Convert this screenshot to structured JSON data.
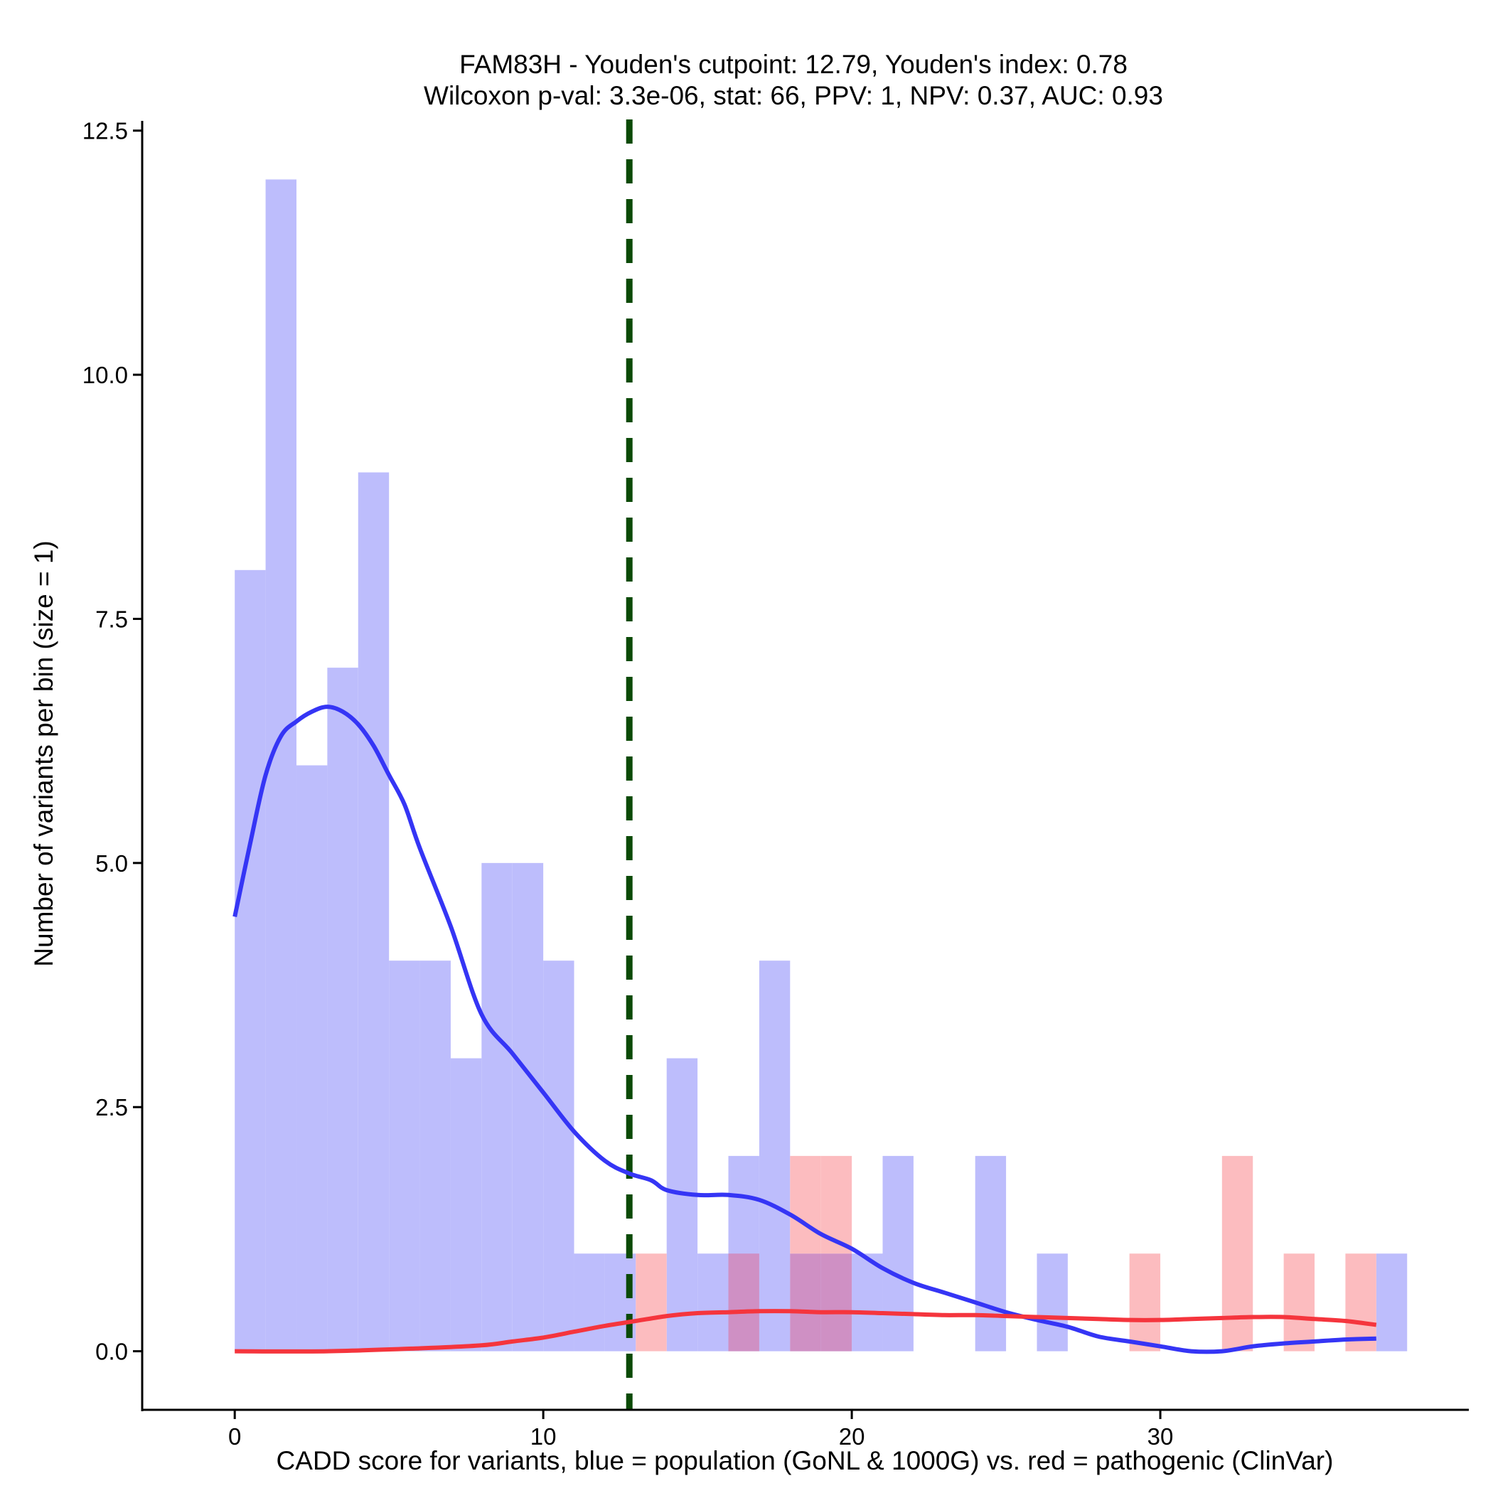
{
  "chart_data": {
    "type": "histogram",
    "title_lines": [
      "FAM83H - Youden's cutpoint: 12.79, Youden's index: 0.78",
      "Wilcoxon p-val: 3.3e-06, stat: 66, PPV: 1, NPV: 0.37, AUC: 0.93"
    ],
    "xlabel": "CADD score for variants, blue = population (GoNL & 1000G) vs. red = pathogenic (ClinVar)",
    "ylabel": "Number of variants per bin (size = 1)",
    "xlim": [
      -3,
      40
    ],
    "ylim": [
      -0.6,
      12.6
    ],
    "x_ticks": [
      0,
      10,
      20,
      30
    ],
    "x_tick_labels": [
      "0",
      "10",
      "20",
      "30"
    ],
    "y_ticks": [
      0,
      2.5,
      5,
      7.5,
      10,
      12.5
    ],
    "y_tick_labels": [
      "0.0",
      "2.5",
      "5.0",
      "7.5",
      "10.0",
      "12.5"
    ],
    "bin_width": 1,
    "bin_starts": [
      0,
      1,
      2,
      3,
      4,
      5,
      6,
      7,
      8,
      9,
      10,
      11,
      12,
      13,
      14,
      15,
      16,
      17,
      18,
      19,
      20,
      21,
      22,
      23,
      24,
      25,
      26,
      27,
      28,
      29,
      30,
      31,
      32,
      33,
      34,
      35,
      36,
      37
    ],
    "series": [
      {
        "name": "population (GoNL & 1000G)",
        "color": "#0000ff",
        "bar_fill": "#bdbdfc",
        "counts": [
          8,
          12,
          6,
          7,
          9,
          4,
          4,
          3,
          5,
          5,
          4,
          1,
          1,
          0,
          3,
          1,
          2,
          4,
          1,
          1,
          1,
          2,
          0,
          0,
          2,
          0,
          1,
          0,
          0,
          0,
          0,
          0,
          0,
          0,
          0,
          0,
          0,
          1
        ]
      },
      {
        "name": "pathogenic (ClinVar)",
        "color": "#ff0000",
        "bar_fill": "#fcbcbf",
        "counts": [
          0,
          0,
          0,
          0,
          0,
          0,
          0,
          0,
          0,
          0,
          0,
          0,
          0,
          1,
          0,
          0,
          1,
          0,
          2,
          2,
          0,
          0,
          0,
          0,
          0,
          0,
          0,
          0,
          0,
          1,
          0,
          0,
          2,
          0,
          1,
          0,
          1,
          0
        ]
      }
    ],
    "overlap_fill": "#cf90c4",
    "density_curves": [
      {
        "name": "population density",
        "color": "#3535f5",
        "x": [
          0,
          0.5,
          1,
          1.5,
          2,
          2.5,
          3,
          3.5,
          4,
          4.5,
          5,
          5.5,
          6,
          7,
          8,
          9,
          10,
          11,
          12,
          12.79,
          13.5,
          14,
          15,
          16,
          17,
          18,
          19,
          20,
          21,
          22,
          23,
          24,
          25,
          26,
          27,
          28,
          29,
          30,
          31,
          32,
          33,
          34,
          35,
          36,
          37
        ],
        "y": [
          4.45,
          5.2,
          5.9,
          6.3,
          6.45,
          6.55,
          6.6,
          6.55,
          6.42,
          6.2,
          5.9,
          5.6,
          5.15,
          4.35,
          3.45,
          3.05,
          2.65,
          2.25,
          1.95,
          1.82,
          1.75,
          1.65,
          1.6,
          1.6,
          1.55,
          1.4,
          1.2,
          1.05,
          0.85,
          0.7,
          0.6,
          0.5,
          0.4,
          0.32,
          0.25,
          0.15,
          0.1,
          0.05,
          0.0,
          0.0,
          0.05,
          0.08,
          0.1,
          0.12,
          0.13
        ]
      },
      {
        "name": "pathogenic density",
        "color": "#f5353d",
        "x": [
          0,
          3,
          6,
          8,
          9,
          10,
          11,
          12,
          13,
          14,
          15,
          16,
          17,
          18,
          19,
          20,
          21,
          22,
          23,
          24,
          25,
          26,
          27,
          28,
          29,
          30,
          31,
          32,
          33,
          34,
          35,
          36,
          37
        ],
        "y": [
          0,
          0,
          0.03,
          0.06,
          0.1,
          0.14,
          0.2,
          0.26,
          0.31,
          0.36,
          0.39,
          0.4,
          0.41,
          0.41,
          0.4,
          0.4,
          0.39,
          0.38,
          0.37,
          0.37,
          0.36,
          0.35,
          0.34,
          0.33,
          0.32,
          0.32,
          0.33,
          0.34,
          0.35,
          0.35,
          0.33,
          0.31,
          0.27
        ]
      }
    ],
    "cutpoint": {
      "x": 12.79,
      "label": "Youden's cutpoint",
      "color": "#0b4a06"
    }
  }
}
